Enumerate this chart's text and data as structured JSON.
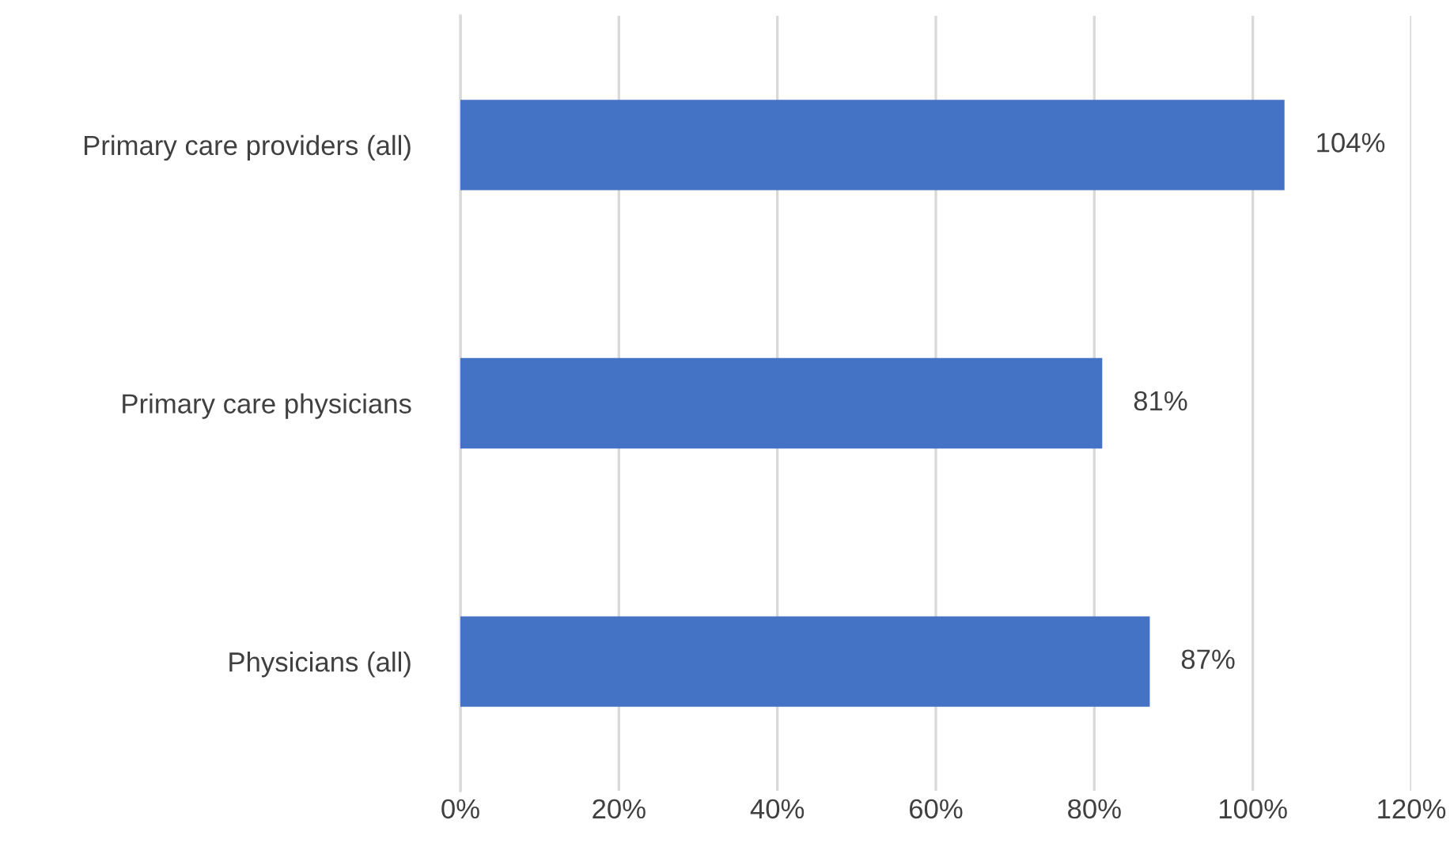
{
  "chart_data": {
    "type": "bar",
    "orientation": "horizontal",
    "categories": [
      "Primary care providers (all)",
      "Primary care physicians",
      "Physicians (all)"
    ],
    "values": [
      104,
      81,
      87
    ],
    "color": "#4472c4",
    "value_labels": [
      "104%",
      "81%",
      "87%"
    ],
    "xlim": [
      0,
      120
    ],
    "xticks": [
      {
        "value": 0,
        "label": "0%"
      },
      {
        "value": 20,
        "label": "20%"
      },
      {
        "value": 40,
        "label": "40%"
      },
      {
        "value": 60,
        "label": "60%"
      },
      {
        "value": 80,
        "label": "80%"
      },
      {
        "value": 100,
        "label": "100%"
      },
      {
        "value": 120,
        "label": "120%"
      }
    ],
    "grid": "x",
    "legend": false
  }
}
